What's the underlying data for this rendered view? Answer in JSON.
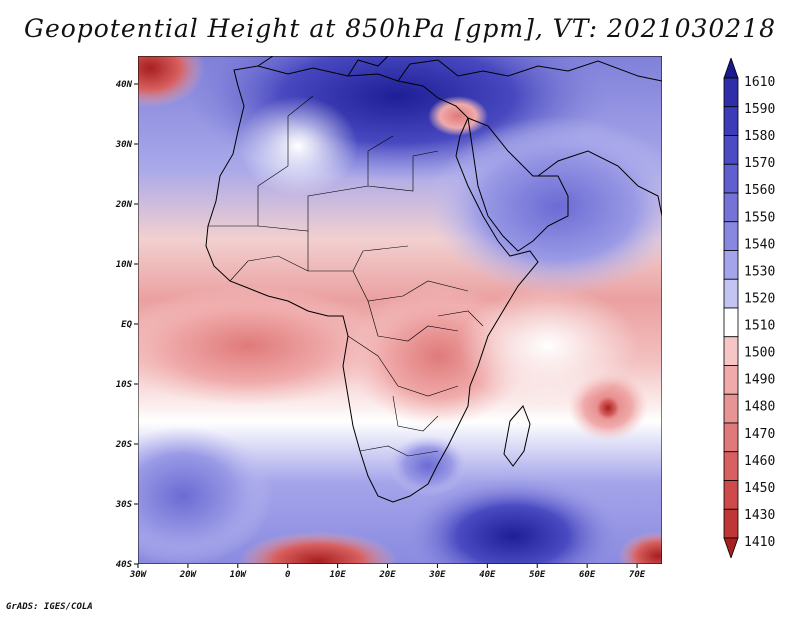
{
  "title": "Geopotential Height at 850hPa [gpm], VT: 2021030218",
  "footer": "GrADS: IGES/COLA",
  "map": {
    "lon_labels": [
      "30W",
      "20W",
      "10W",
      "0",
      "10E",
      "20E",
      "30E",
      "40E",
      "50E",
      "60E",
      "70E"
    ],
    "lat_labels": [
      "40N",
      "30N",
      "20N",
      "10N",
      "EQ",
      "10S",
      "20S",
      "30S",
      "40S"
    ]
  },
  "colorbar": {
    "levels": [
      "1610",
      "1590",
      "1580",
      "1570",
      "1560",
      "1550",
      "1540",
      "1530",
      "1520",
      "1510",
      "1500",
      "1490",
      "1480",
      "1470",
      "1460",
      "1450",
      "1430",
      "1410"
    ],
    "colors": [
      "#1a1a8c",
      "#2e2ea8",
      "#3c3cb8",
      "#4b4bc4",
      "#5f5fcf",
      "#7373d8",
      "#8888e0",
      "#a4a4ea",
      "#c4c4f3",
      "#ffffff",
      "#f6c6c6",
      "#f0aaaa",
      "#e89494",
      "#e07a7a",
      "#d86060",
      "#cf4a4a",
      "#c03535",
      "#a81f1f"
    ]
  }
}
